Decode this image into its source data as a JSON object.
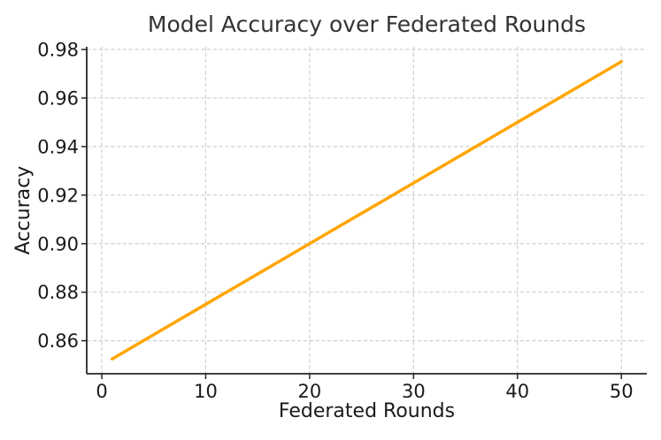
{
  "chart_data": {
    "type": "line",
    "title": "Model Accuracy over Federated Rounds",
    "xlabel": "Federated Rounds",
    "ylabel": "Accuracy",
    "xlim": [
      -1.45,
      52.45
    ],
    "ylim": [
      0.8464,
      0.9811
    ],
    "xticks": [
      0,
      10,
      20,
      30,
      40,
      50
    ],
    "xtick_labels": [
      "0",
      "10",
      "20",
      "30",
      "40",
      "50"
    ],
    "yticks": [
      0.86,
      0.88,
      0.9,
      0.92,
      0.94,
      0.96,
      0.98
    ],
    "ytick_labels": [
      "0.86",
      "0.88",
      "0.90",
      "0.92",
      "0.94",
      "0.96",
      "0.98"
    ],
    "grid": true,
    "grid_style": "dashed",
    "grid_color": "#cfcfcf",
    "legend": "none",
    "spine_color": "#262626",
    "text_color": "#1a1a1a",
    "series": [
      {
        "name": "model-accuracy",
        "color": "#FFA500",
        "line_width": 3.5,
        "marker": "none",
        "x": [
          1,
          2,
          3,
          4,
          5,
          6,
          7,
          8,
          9,
          10,
          11,
          12,
          13,
          14,
          15,
          16,
          17,
          18,
          19,
          20,
          21,
          22,
          23,
          24,
          25,
          26,
          27,
          28,
          29,
          30,
          31,
          32,
          33,
          34,
          35,
          36,
          37,
          38,
          39,
          40,
          41,
          42,
          43,
          44,
          45,
          46,
          47,
          48,
          49,
          50
        ],
        "y": [
          0.8525,
          0.855,
          0.8575,
          0.86,
          0.8625,
          0.865,
          0.8675,
          0.87,
          0.8725,
          0.875,
          0.8775,
          0.88,
          0.8825,
          0.885,
          0.8875,
          0.89,
          0.8925,
          0.895,
          0.8975,
          0.9,
          0.9025,
          0.905,
          0.9075,
          0.91,
          0.9125,
          0.915,
          0.9175,
          0.92,
          0.9225,
          0.925,
          0.9275,
          0.93,
          0.9325,
          0.935,
          0.9375,
          0.94,
          0.9425,
          0.945,
          0.9475,
          0.95,
          0.9525,
          0.955,
          0.9575,
          0.96,
          0.9625,
          0.965,
          0.9675,
          0.97,
          0.9725,
          0.975
        ]
      }
    ]
  }
}
